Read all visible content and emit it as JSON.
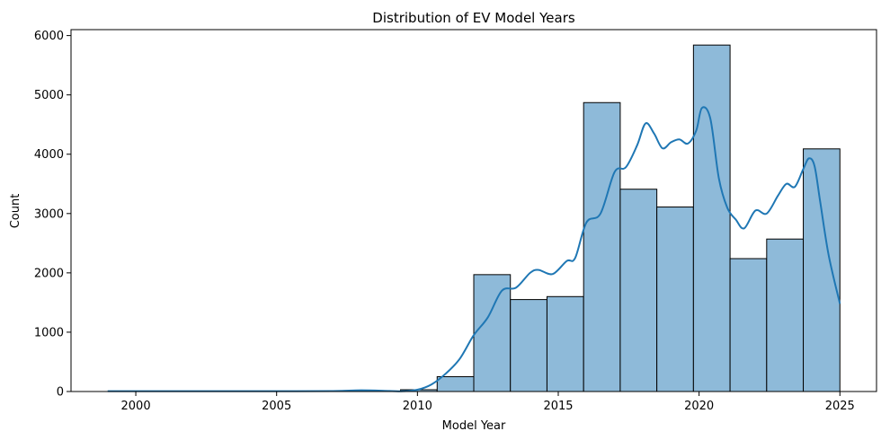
{
  "chart_data": {
    "type": "bar",
    "title": "Distribution of EV Model Years",
    "xlabel": "Model Year",
    "ylabel": "Count",
    "xlim": [
      1997.7,
      2026.3
    ],
    "ylim": [
      0,
      6100
    ],
    "xticks": [
      2000,
      2005,
      2010,
      2015,
      2020,
      2025
    ],
    "yticks": [
      0,
      1000,
      2000,
      3000,
      4000,
      5000,
      6000
    ],
    "grid": false,
    "bar_color": "#8ebad9",
    "bar_edge": "#000000",
    "kde_color": "#1f77b4",
    "bins": [
      {
        "x0": 2009.4,
        "x1": 2010.7,
        "value": 30
      },
      {
        "x0": 2010.7,
        "x1": 2012.0,
        "value": 250
      },
      {
        "x0": 2012.0,
        "x1": 2013.3,
        "value": 1970
      },
      {
        "x0": 2013.3,
        "x1": 2014.6,
        "value": 1550
      },
      {
        "x0": 2014.6,
        "x1": 2015.9,
        "value": 1600
      },
      {
        "x0": 2015.9,
        "x1": 2017.2,
        "value": 4870
      },
      {
        "x0": 2017.2,
        "x1": 2018.5,
        "value": 3410
      },
      {
        "x0": 2018.5,
        "x1": 2019.8,
        "value": 3110
      },
      {
        "x0": 2019.8,
        "x1": 2021.1,
        "value": 5840
      },
      {
        "x0": 2021.1,
        "x1": 2022.4,
        "value": 2240
      },
      {
        "x0": 2022.4,
        "x1": 2023.7,
        "value": 2570
      },
      {
        "x0": 2023.7,
        "x1": 2025.0,
        "value": 4090
      }
    ],
    "kde": {
      "x": [
        1999.0,
        2001.0,
        2003.0,
        2005.0,
        2007.0,
        2008.0,
        2009.0,
        2009.5,
        2010.0,
        2010.5,
        2011.0,
        2011.5,
        2012.0,
        2012.5,
        2013.0,
        2013.5,
        2014.0,
        2014.3,
        2014.8,
        2015.3,
        2015.6,
        2016.0,
        2016.5,
        2017.0,
        2017.4,
        2017.8,
        2018.1,
        2018.4,
        2018.7,
        2019.0,
        2019.3,
        2019.6,
        2019.9,
        2020.1,
        2020.4,
        2020.7,
        2021.0,
        2021.3,
        2021.6,
        2022.0,
        2022.4,
        2022.8,
        2023.1,
        2023.4,
        2023.7,
        2023.9,
        2024.1,
        2024.3,
        2024.6,
        2025.0
      ],
      "y": [
        5,
        5,
        5,
        5,
        8,
        20,
        10,
        5,
        30,
        120,
        300,
        550,
        950,
        1250,
        1700,
        1750,
        2000,
        2050,
        1980,
        2200,
        2250,
        2850,
        3000,
        3700,
        3780,
        4150,
        4520,
        4350,
        4100,
        4200,
        4250,
        4180,
        4400,
        4780,
        4600,
        3600,
        3100,
        2900,
        2750,
        3050,
        3000,
        3300,
        3500,
        3450,
        3750,
        3930,
        3800,
        3200,
        2300,
        1480
      ]
    }
  }
}
